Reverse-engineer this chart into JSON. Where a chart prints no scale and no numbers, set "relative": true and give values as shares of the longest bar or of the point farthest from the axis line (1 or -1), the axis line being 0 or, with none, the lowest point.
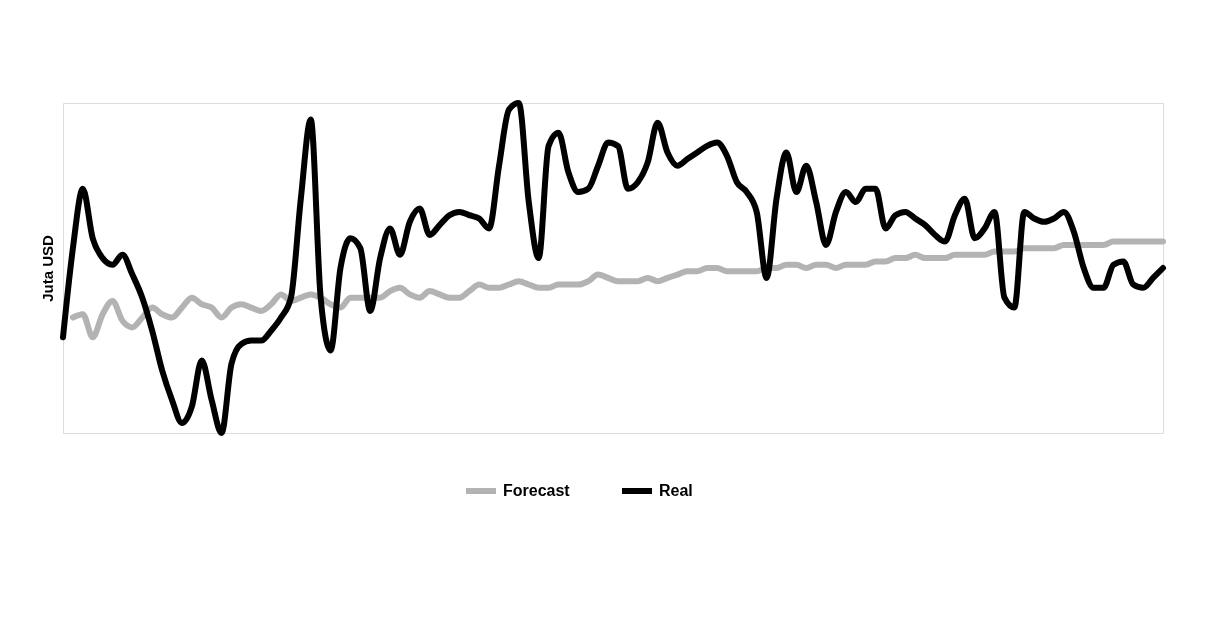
{
  "chart_data": {
    "type": "line",
    "relative": true,
    "ylabel": "Juta USD",
    "legend": "bottom",
    "grid": false,
    "marker": "none",
    "line_style": "solid",
    "tick_labels": false,
    "categories": [
      null,
      null,
      null,
      null,
      null,
      null,
      null,
      null,
      null,
      null,
      null,
      null,
      null,
      null,
      null,
      null,
      null,
      null,
      null,
      null,
      null,
      null,
      null,
      null,
      null,
      null,
      null,
      null,
      null,
      null,
      null,
      null,
      null,
      null,
      null,
      null,
      null,
      null,
      null,
      null,
      null,
      null,
      null,
      null,
      null,
      null,
      null,
      null,
      null,
      null,
      null,
      null,
      null,
      null,
      null,
      null,
      null,
      null,
      null,
      null,
      null,
      null,
      null,
      null,
      null,
      null,
      null,
      null,
      null,
      null,
      null,
      null,
      null,
      null,
      null,
      null,
      null,
      null,
      null,
      null,
      null,
      null,
      null,
      null,
      null,
      null,
      null,
      null,
      null,
      null,
      null,
      null,
      null,
      null,
      null,
      null,
      null,
      null,
      null,
      null,
      null,
      null,
      null,
      null,
      null,
      null,
      null,
      null,
      null,
      null,
      null,
      null
    ],
    "series": [
      {
        "name": "Forecast",
        "color": "#b3b3b3",
        "values": [
          null,
          0.35,
          0.36,
          0.29,
          0.36,
          0.4,
          0.34,
          0.32,
          0.35,
          0.38,
          0.36,
          0.35,
          0.38,
          0.41,
          0.39,
          0.38,
          0.35,
          0.38,
          0.39,
          0.38,
          0.37,
          0.39,
          0.42,
          0.4,
          0.41,
          0.42,
          0.41,
          0.39,
          0.38,
          0.41,
          0.41,
          0.41,
          0.41,
          0.43,
          0.44,
          0.42,
          0.41,
          0.43,
          0.42,
          0.41,
          0.41,
          0.43,
          0.45,
          0.44,
          0.44,
          0.45,
          0.46,
          0.45,
          0.44,
          0.44,
          0.45,
          0.45,
          0.45,
          0.46,
          0.48,
          0.47,
          0.46,
          0.46,
          0.46,
          0.47,
          0.46,
          0.47,
          0.48,
          0.49,
          0.49,
          0.5,
          0.5,
          0.49,
          0.49,
          0.49,
          0.49,
          0.5,
          0.5,
          0.51,
          0.51,
          0.5,
          0.51,
          0.51,
          0.5,
          0.51,
          0.51,
          0.51,
          0.52,
          0.52,
          0.53,
          0.53,
          0.54,
          0.53,
          0.53,
          0.53,
          0.54,
          0.54,
          0.54,
          0.54,
          0.55,
          0.55,
          0.55,
          0.56,
          0.56,
          0.56,
          0.56,
          0.57,
          0.57,
          0.57,
          0.57,
          0.57,
          0.58,
          0.58,
          0.58,
          0.58,
          0.58,
          0.58
        ]
      },
      {
        "name": "Real",
        "color": "#000000",
        "values": [
          0.29,
          0.56,
          0.74,
          0.59,
          0.53,
          0.51,
          0.54,
          0.48,
          0.41,
          0.31,
          0.19,
          0.1,
          0.03,
          0.08,
          0.22,
          0.1,
          0.0,
          0.21,
          0.27,
          0.28,
          0.28,
          0.31,
          0.35,
          0.41,
          0.71,
          0.95,
          0.41,
          0.25,
          0.5,
          0.59,
          0.56,
          0.37,
          0.53,
          0.62,
          0.54,
          0.64,
          0.68,
          0.6,
          0.63,
          0.66,
          0.67,
          0.66,
          0.65,
          0.62,
          0.81,
          0.98,
          1.0,
          0.7,
          0.53,
          0.87,
          0.91,
          0.79,
          0.73,
          0.74,
          0.81,
          0.88,
          0.87,
          0.74,
          0.76,
          0.82,
          0.94,
          0.85,
          0.81,
          0.83,
          0.85,
          0.87,
          0.88,
          0.84,
          0.76,
          0.73,
          0.67,
          0.47,
          0.71,
          0.85,
          0.73,
          0.81,
          0.7,
          0.57,
          0.67,
          0.73,
          0.7,
          0.74,
          0.74,
          0.62,
          0.66,
          0.67,
          0.65,
          0.63,
          0.6,
          0.58,
          0.66,
          0.71,
          0.59,
          0.62,
          0.67,
          0.41,
          0.38,
          0.67,
          0.65,
          0.64,
          0.65,
          0.67,
          0.61,
          0.5,
          0.44,
          0.44,
          0.51,
          0.52,
          0.45,
          0.44,
          0.47,
          0.5
        ]
      }
    ]
  }
}
